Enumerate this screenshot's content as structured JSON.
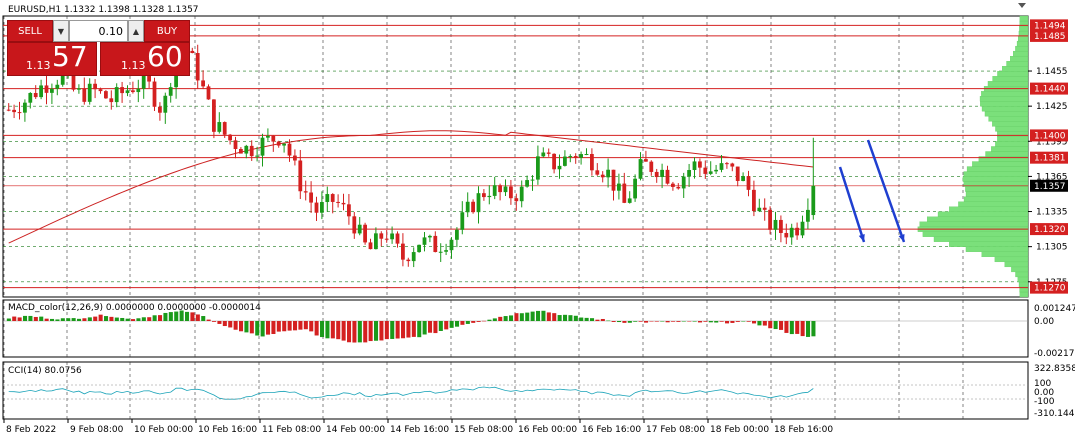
{
  "header": {
    "symbol_info": "EURUSD,H1  1.1332 1.1398 1.1328 1.1357"
  },
  "trade_panel": {
    "sell_label": "SELL",
    "buy_label": "BUY",
    "lot_value": "0.10",
    "sell_price_small": "1.13",
    "sell_price_big": "57",
    "buy_price_small": "1.13",
    "buy_price_big": "60"
  },
  "price_axis": {
    "ticks": [
      "1.1455",
      "1.1425",
      "1.1395",
      "1.1365",
      "1.1335",
      "1.1305",
      "1.1275"
    ],
    "level_labels": [
      "1.1494",
      "1.1485",
      "1.1440",
      "1.1400",
      "1.1381",
      "1.1320",
      "1.1270"
    ],
    "current_price": "1.1357"
  },
  "macd": {
    "label": "MACD_color(12,26,9) 0.0000000 0.0000000 -0.0000014",
    "ticks": [
      "0.001247",
      "0.00",
      "-0.00217"
    ]
  },
  "cci": {
    "label": "CCI(14) 80.0756",
    "ticks": [
      "322.8358",
      "100",
      "0.00",
      "-100",
      "-310.144"
    ]
  },
  "time_axis": [
    "8 Feb 2022",
    "9 Feb 08:00",
    "10 Feb 00:00",
    "10 Feb 16:00",
    "11 Feb 08:00",
    "14 Feb 00:00",
    "14 Feb 16:00",
    "15 Feb 08:00",
    "16 Feb 00:00",
    "16 Feb 16:00",
    "17 Feb 08:00",
    "18 Feb 00:00",
    "18 Feb 16:00"
  ],
  "colors": {
    "bull_candle": "#1a9a1a",
    "bear_candle": "#d42020",
    "level_line": "#d42020",
    "moving_average": "#cc2222",
    "arrows": "#1f3fd0",
    "volume_profile": "#7be07b",
    "cci_line": "#1aa3b8",
    "price_badge": "#000000",
    "level_badge": "#d42020"
  },
  "chart_data": {
    "type": "candlestick",
    "symbol": "EURUSD",
    "timeframe": "H1",
    "last_bar": {
      "open": 1.1332,
      "high": 1.1398,
      "low": 1.1328,
      "close": 1.1357
    },
    "price_range": [
      1.1262,
      1.1502
    ],
    "horizontal_levels": [
      1.1494,
      1.1485,
      1.144,
      1.14,
      1.1381,
      1.1357,
      1.132,
      1.127
    ],
    "close_path": [
      1.1422,
      1.143,
      1.1443,
      1.145,
      1.1435,
      1.1438,
      1.143,
      1.144,
      1.1447,
      1.142,
      1.1485,
      1.1455,
      1.141,
      1.1395,
      1.1388,
      1.1395,
      1.14,
      1.136,
      1.1335,
      1.1345,
      1.133,
      1.13,
      1.1318,
      1.1295,
      1.131,
      1.1305,
      1.1315,
      1.134,
      1.1355,
      1.1348,
      1.1352,
      1.138,
      1.1375,
      1.1385,
      1.138,
      1.1368,
      1.134,
      1.1375,
      1.1372,
      1.136,
      1.1375,
      1.137,
      1.1372,
      1.136,
      1.133,
      1.1318,
      1.132,
      1.1357
    ],
    "macd_histogram": [
      0.0003,
      0.0005,
      0.0003,
      0.0002,
      0.0004,
      0.0006,
      0.0002,
      0.0004,
      0.0008,
      0.001,
      0.0004,
      -0.0005,
      -0.0012,
      -0.0015,
      -0.001,
      -0.0008,
      -0.0016,
      -0.002,
      -0.0022,
      -0.0019,
      -0.0018,
      -0.0015,
      -0.001,
      -0.0004,
      0.0,
      0.0004,
      0.0008,
      0.0011,
      0.0007,
      0.0004,
      0.0002,
      -0.0001,
      -0.0001,
      -0.0001,
      -0.0001,
      -0.0001,
      -0.0002,
      -0.0001,
      -0.0002,
      -0.0008,
      -0.0013,
      -0.0016
    ]
  }
}
